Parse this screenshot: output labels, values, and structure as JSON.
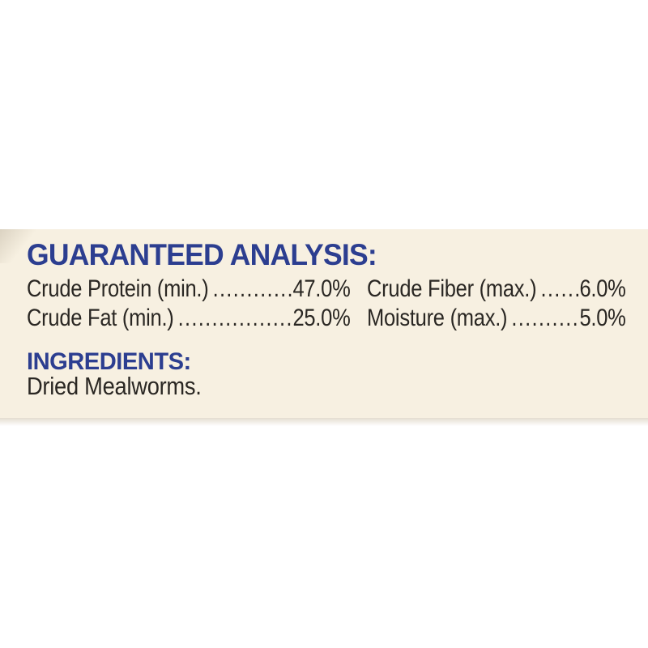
{
  "canvas": {
    "background_color": "#ffffff"
  },
  "panel": {
    "background_color": "#f7f0e1",
    "heading_color": "#2c3e90",
    "body_text_color": "#2a2723",
    "guaranteed_analysis": {
      "title": "GUARANTEED ANALYSIS:",
      "leader_dots": "........................................................................",
      "columns": [
        {
          "rows": [
            {
              "label": "Crude Protein (min.)",
              "value": "47.0%"
            },
            {
              "label": "Crude Fat (min.)",
              "value": "25.0%"
            }
          ]
        },
        {
          "rows": [
            {
              "label": "Crude Fiber (max.)",
              "value": "6.0%"
            },
            {
              "label": "Moisture (max.)",
              "value": "5.0%"
            }
          ]
        }
      ]
    },
    "ingredients": {
      "title": "INGREDIENTS:",
      "text": "Dried Mealworms."
    }
  }
}
